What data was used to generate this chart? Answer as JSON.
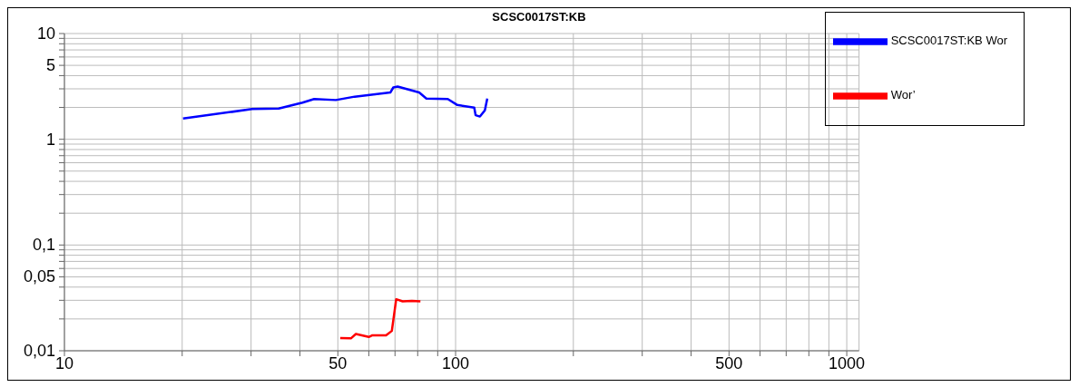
{
  "chart_data": {
    "type": "line",
    "title": "SCSC0017ST:KB",
    "log": "xy",
    "grid": true,
    "legend": "top right",
    "marker": "none",
    "line_style": "solid",
    "xlim": [
      10,
      1075
    ],
    "xticks": [
      10,
      {
        "value": 20,
        "label": null
      },
      {
        "value": 30,
        "label": null
      },
      {
        "value": 40,
        "label": null
      },
      50,
      {
        "value": 60,
        "label": null
      },
      {
        "value": 70,
        "label": null
      },
      {
        "value": 80,
        "label": null
      },
      {
        "value": 90,
        "label": null
      },
      100,
      {
        "value": 200,
        "label": null
      },
      {
        "value": 300,
        "label": null
      },
      {
        "value": 400,
        "label": null
      },
      500,
      {
        "value": 600,
        "label": null
      },
      {
        "value": 700,
        "label": null
      },
      {
        "value": 800,
        "label": null
      },
      {
        "value": 900,
        "label": null
      },
      1000
    ],
    "ylim": [
      0.01,
      10
    ],
    "yticks": [
      {
        "value": 0.01,
        "label": "0,01"
      },
      {
        "value": 0.02,
        "label": null
      },
      {
        "value": 0.03,
        "label": null
      },
      {
        "value": 0.04,
        "label": null
      },
      {
        "value": 0.05,
        "label": "0,05"
      },
      {
        "value": 0.06,
        "label": null
      },
      {
        "value": 0.07,
        "label": null
      },
      {
        "value": 0.08,
        "label": null
      },
      {
        "value": 0.09,
        "label": null
      },
      {
        "value": 0.1,
        "label": "0,1"
      },
      {
        "value": 0.2,
        "label": null
      },
      {
        "value": 0.3,
        "label": null
      },
      {
        "value": 0.4,
        "label": null
      },
      {
        "value": 0.5,
        "label": null
      },
      {
        "value": 0.6,
        "label": null
      },
      {
        "value": 0.7,
        "label": null
      },
      {
        "value": 0.8,
        "label": null
      },
      {
        "value": 0.9,
        "label": null
      },
      1,
      {
        "value": 2,
        "label": null
      },
      {
        "value": 3,
        "label": null
      },
      {
        "value": 4,
        "label": null
      },
      5,
      {
        "value": 6,
        "label": null
      },
      {
        "value": 7,
        "label": null
      },
      {
        "value": 8,
        "label": null
      },
      {
        "value": 9,
        "label": null
      },
      10
    ],
    "series": [
      {
        "name": "SCSC0017ST:KB Wor",
        "color": "#0000ff",
        "x": [
          20.1,
          30.2,
          35.3,
          40.6,
          43.5,
          49.4,
          55.2,
          68.1,
          69.3,
          71.1,
          80.7,
          84.2,
          95.5,
          101,
          111.6,
          112.5,
          115.4,
          118.8,
          120.5
        ],
        "values": [
          1.57,
          1.93,
          1.95,
          2.22,
          2.4,
          2.35,
          2.53,
          2.77,
          3.09,
          3.15,
          2.77,
          2.43,
          2.4,
          2.11,
          1.99,
          1.69,
          1.64,
          1.88,
          2.43
        ]
      },
      {
        "name": "Wor’",
        "color": "#ff0000",
        "x": [
          50.7,
          54,
          55.6,
          60,
          61.3,
          66.4,
          68.7,
          70.5,
          73.2,
          77.3,
          81.3
        ],
        "values": [
          0.0132,
          0.0131,
          0.0144,
          0.0135,
          0.014,
          0.014,
          0.0154,
          0.0307,
          0.0293,
          0.0296,
          0.0293
        ]
      }
    ]
  }
}
